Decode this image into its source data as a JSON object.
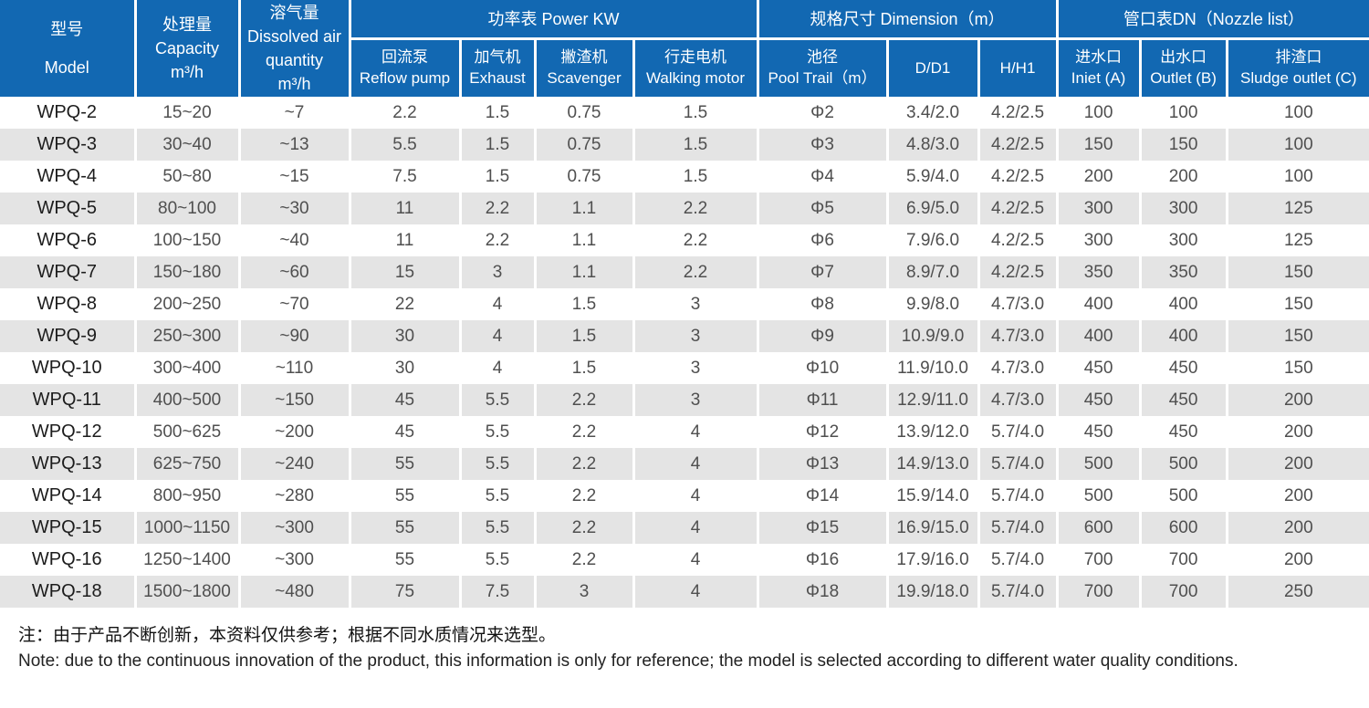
{
  "colors": {
    "header_blue": "#1268b2",
    "row_gray": "#e4e4e4",
    "separator_white": "#ffffff"
  },
  "table": {
    "header": {
      "model": "型号\nModel",
      "capacity": "处理量\nCapacity\nm³/h",
      "dissolved_air": "溶气量\nDissolved air\nquantity\nm³/h",
      "power_group": "功率表 Power KW",
      "dimension_group": "规格尺寸 Dimension（m）",
      "nozzle_group": "管口表DN（Nozzle list）",
      "reflow_pump": "回流泵\nReflow pump",
      "exhaust": "加气机\nExhaust",
      "scavenger": "撇渣机\nScavenger",
      "walking_motor": "行走电机\nWalking motor",
      "pool_trail": "池径\nPool Trail（m）",
      "d_d1": "D/D1",
      "h_h1": "H/H1",
      "inlet": "进水口\nIniet (A)",
      "outlet": "出水口\nOutlet (B)",
      "sludge_outlet": "排渣口\nSludge outlet (C)"
    },
    "rows": [
      [
        "WPQ-2",
        "15~20",
        "~7",
        "2.2",
        "1.5",
        "0.75",
        "1.5",
        "Φ2",
        "3.4/2.0",
        "4.2/2.5",
        "100",
        "100",
        "100"
      ],
      [
        "WPQ-3",
        "30~40",
        "~13",
        "5.5",
        "1.5",
        "0.75",
        "1.5",
        "Φ3",
        "4.8/3.0",
        "4.2/2.5",
        "150",
        "150",
        "100"
      ],
      [
        "WPQ-4",
        "50~80",
        "~15",
        "7.5",
        "1.5",
        "0.75",
        "1.5",
        "Φ4",
        "5.9/4.0",
        "4.2/2.5",
        "200",
        "200",
        "100"
      ],
      [
        "WPQ-5",
        "80~100",
        "~30",
        "11",
        "2.2",
        "1.1",
        "2.2",
        "Φ5",
        "6.9/5.0",
        "4.2/2.5",
        "300",
        "300",
        "125"
      ],
      [
        "WPQ-6",
        "100~150",
        "~40",
        "11",
        "2.2",
        "1.1",
        "2.2",
        "Φ6",
        "7.9/6.0",
        "4.2/2.5",
        "300",
        "300",
        "125"
      ],
      [
        "WPQ-7",
        "150~180",
        "~60",
        "15",
        "3",
        "1.1",
        "2.2",
        "Φ7",
        "8.9/7.0",
        "4.2/2.5",
        "350",
        "350",
        "150"
      ],
      [
        "WPQ-8",
        "200~250",
        "~70",
        "22",
        "4",
        "1.5",
        "3",
        "Φ8",
        "9.9/8.0",
        "4.7/3.0",
        "400",
        "400",
        "150"
      ],
      [
        "WPQ-9",
        "250~300",
        "~90",
        "30",
        "4",
        "1.5",
        "3",
        "Φ9",
        "10.9/9.0",
        "4.7/3.0",
        "400",
        "400",
        "150"
      ],
      [
        "WPQ-10",
        "300~400",
        "~110",
        "30",
        "4",
        "1.5",
        "3",
        "Φ10",
        "11.9/10.0",
        "4.7/3.0",
        "450",
        "450",
        "150"
      ],
      [
        "WPQ-11",
        "400~500",
        "~150",
        "45",
        "5.5",
        "2.2",
        "3",
        "Φ11",
        "12.9/11.0",
        "4.7/3.0",
        "450",
        "450",
        "200"
      ],
      [
        "WPQ-12",
        "500~625",
        "~200",
        "45",
        "5.5",
        "2.2",
        "4",
        "Φ12",
        "13.9/12.0",
        "5.7/4.0",
        "450",
        "450",
        "200"
      ],
      [
        "WPQ-13",
        "625~750",
        "~240",
        "55",
        "5.5",
        "2.2",
        "4",
        "Φ13",
        "14.9/13.0",
        "5.7/4.0",
        "500",
        "500",
        "200"
      ],
      [
        "WPQ-14",
        "800~950",
        "~280",
        "55",
        "5.5",
        "2.2",
        "4",
        "Φ14",
        "15.9/14.0",
        "5.7/4.0",
        "500",
        "500",
        "200"
      ],
      [
        "WPQ-15",
        "1000~1150",
        "~300",
        "55",
        "5.5",
        "2.2",
        "4",
        "Φ15",
        "16.9/15.0",
        "5.7/4.0",
        "600",
        "600",
        "200"
      ],
      [
        "WPQ-16",
        "1250~1400",
        "~300",
        "55",
        "5.5",
        "2.2",
        "4",
        "Φ16",
        "17.9/16.0",
        "5.7/4.0",
        "700",
        "700",
        "200"
      ],
      [
        "WPQ-18",
        "1500~1800",
        "~480",
        "75",
        "7.5",
        "3",
        "4",
        "Φ18",
        "19.9/18.0",
        "5.7/4.0",
        "700",
        "700",
        "250"
      ]
    ]
  },
  "note": {
    "zh": "注：由于产品不断创新，本资料仅供参考；根据不同水质情况来选型。",
    "en": "Note: due to the continuous innovation of the product, this information is only for reference; the model is selected according to different water quality conditions."
  }
}
